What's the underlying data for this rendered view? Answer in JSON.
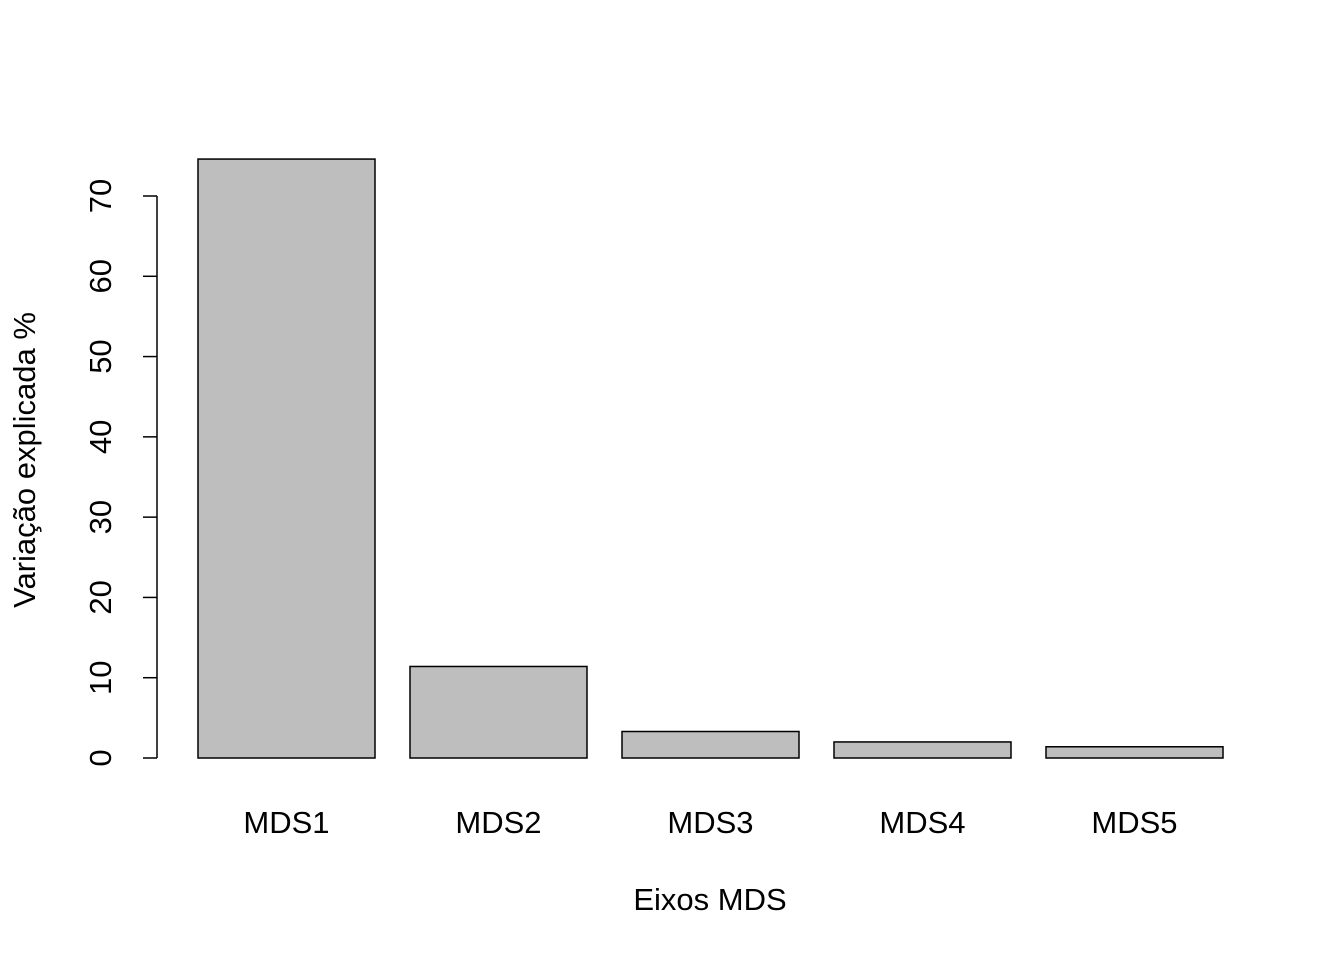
{
  "chart_data": {
    "type": "bar",
    "title": "",
    "categories": [
      "MDS1",
      "MDS2",
      "MDS3",
      "MDS4",
      "MDS5"
    ],
    "values": [
      74.6,
      11.4,
      3.3,
      2.0,
      1.4
    ],
    "xlabel": "Eixos MDS",
    "ylabel": "Variação explicada %",
    "ylim": [
      0,
      70
    ],
    "yticks": [
      "0",
      "10",
      "20",
      "30",
      "40",
      "50",
      "60",
      "70"
    ],
    "grid": false,
    "colors": {
      "bar_fill": "#bebebe",
      "bar_stroke": "#000000"
    }
  }
}
